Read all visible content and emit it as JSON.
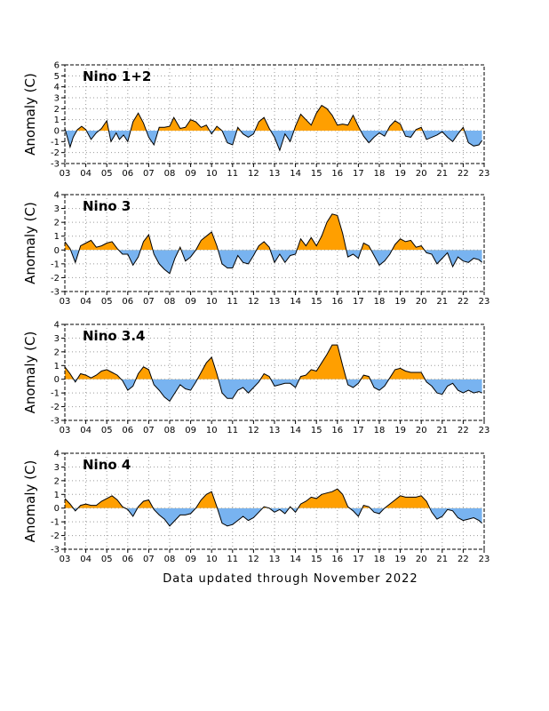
{
  "footer": "Data updated through November 2022",
  "colors": {
    "positive": "#ff9f00",
    "negative": "#78b3f0",
    "line": "#000000",
    "grid": "#9a9a9a"
  },
  "chart_data": [
    {
      "type": "area",
      "title": "Nino 1+2",
      "ylabel": "Anomaly (C)",
      "xlim": [
        2003,
        2023
      ],
      "ylim": [
        -3,
        6
      ],
      "xticks": [
        2003,
        2004,
        2005,
        2006,
        2007,
        2008,
        2009,
        2010,
        2011,
        2012,
        2013,
        2014,
        2015,
        2016,
        2017,
        2018,
        2019,
        2020,
        2021,
        2022,
        2023
      ],
      "xticklabels": [
        "03",
        "04",
        "05",
        "06",
        "07",
        "08",
        "09",
        "10",
        "11",
        "12",
        "13",
        "14",
        "15",
        "16",
        "17",
        "18",
        "19",
        "20",
        "21",
        "22",
        "23"
      ],
      "yticks": [
        -3,
        -2,
        -1,
        0,
        1,
        2,
        3,
        4,
        5,
        6
      ],
      "grid": true,
      "x": [
        2003.0,
        2003.25,
        2003.4,
        2003.6,
        2003.8,
        2004.0,
        2004.25,
        2004.5,
        2004.75,
        2005.0,
        2005.2,
        2005.45,
        2005.6,
        2005.8,
        2006.0,
        2006.25,
        2006.5,
        2006.75,
        2007.0,
        2007.25,
        2007.5,
        2007.75,
        2008.0,
        2008.2,
        2008.5,
        2008.75,
        2009.0,
        2009.25,
        2009.5,
        2009.75,
        2010.0,
        2010.25,
        2010.5,
        2010.75,
        2011.0,
        2011.25,
        2011.5,
        2011.75,
        2012.0,
        2012.25,
        2012.5,
        2012.75,
        2013.0,
        2013.25,
        2013.5,
        2013.75,
        2014.0,
        2014.25,
        2014.5,
        2014.75,
        2015.0,
        2015.25,
        2015.5,
        2015.75,
        2016.0,
        2016.25,
        2016.5,
        2016.75,
        2017.0,
        2017.25,
        2017.5,
        2017.75,
        2018.0,
        2018.25,
        2018.5,
        2018.75,
        2019.0,
        2019.25,
        2019.5,
        2019.75,
        2020.0,
        2020.25,
        2020.5,
        2020.75,
        2021.0,
        2021.25,
        2021.5,
        2021.75,
        2022.0,
        2022.25,
        2022.5,
        2022.75,
        2022.9
      ],
      "values": [
        0.2,
        -1.5,
        -0.6,
        0.1,
        0.4,
        0.1,
        -0.8,
        -0.2,
        0.2,
        0.9,
        -1.0,
        -0.2,
        -0.8,
        -0.4,
        -1.0,
        0.8,
        1.6,
        0.7,
        -0.6,
        -1.3,
        0.3,
        0.3,
        0.4,
        1.2,
        0.2,
        0.3,
        1.0,
        0.8,
        0.3,
        0.5,
        -0.3,
        0.4,
        0.0,
        -1.1,
        -1.3,
        0.3,
        -0.3,
        -0.6,
        -0.3,
        0.8,
        1.2,
        0.2,
        -0.6,
        -1.8,
        -0.3,
        -1.0,
        0.4,
        1.5,
        1.0,
        0.5,
        1.6,
        2.3,
        2.0,
        1.4,
        0.5,
        0.6,
        0.5,
        1.4,
        0.4,
        -0.5,
        -1.1,
        -0.6,
        -0.2,
        -0.5,
        0.4,
        0.9,
        0.6,
        -0.5,
        -0.6,
        0.1,
        0.3,
        -0.8,
        -0.6,
        -0.4,
        -0.1,
        -0.6,
        -1.0,
        -0.3,
        0.3,
        -1.1,
        -1.4,
        -1.3,
        -0.9
      ]
    },
    {
      "type": "area",
      "title": "Nino 3",
      "ylabel": "Anomaly (C)",
      "xlim": [
        2003,
        2023
      ],
      "ylim": [
        -3,
        4
      ],
      "xticks": [
        2003,
        2004,
        2005,
        2006,
        2007,
        2008,
        2009,
        2010,
        2011,
        2012,
        2013,
        2014,
        2015,
        2016,
        2017,
        2018,
        2019,
        2020,
        2021,
        2022,
        2023
      ],
      "xticklabels": [
        "03",
        "04",
        "05",
        "06",
        "07",
        "08",
        "09",
        "10",
        "11",
        "12",
        "13",
        "14",
        "15",
        "16",
        "17",
        "18",
        "19",
        "20",
        "21",
        "22",
        "23"
      ],
      "yticks": [
        -3,
        -2,
        -1,
        0,
        1,
        2,
        3,
        4
      ],
      "grid": true,
      "x": [
        2003.0,
        2003.25,
        2003.5,
        2003.75,
        2004.0,
        2004.25,
        2004.5,
        2004.75,
        2005.0,
        2005.25,
        2005.5,
        2005.75,
        2006.0,
        2006.25,
        2006.5,
        2006.75,
        2007.0,
        2007.25,
        2007.5,
        2007.75,
        2008.0,
        2008.25,
        2008.5,
        2008.75,
        2009.0,
        2009.25,
        2009.5,
        2009.75,
        2010.0,
        2010.25,
        2010.5,
        2010.75,
        2011.0,
        2011.25,
        2011.5,
        2011.75,
        2012.0,
        2012.25,
        2012.5,
        2012.75,
        2013.0,
        2013.25,
        2013.5,
        2013.75,
        2014.0,
        2014.25,
        2014.5,
        2014.75,
        2015.0,
        2015.25,
        2015.5,
        2015.75,
        2016.0,
        2016.25,
        2016.5,
        2016.75,
        2017.0,
        2017.25,
        2017.5,
        2017.75,
        2018.0,
        2018.25,
        2018.5,
        2018.75,
        2019.0,
        2019.25,
        2019.5,
        2019.75,
        2020.0,
        2020.25,
        2020.5,
        2020.75,
        2021.0,
        2021.25,
        2021.5,
        2021.75,
        2022.0,
        2022.25,
        2022.5,
        2022.75,
        2022.9
      ],
      "values": [
        0.6,
        0.1,
        -0.9,
        0.3,
        0.5,
        0.7,
        0.2,
        0.3,
        0.5,
        0.6,
        0.1,
        -0.3,
        -0.3,
        -1.1,
        -0.5,
        0.6,
        1.1,
        -0.3,
        -1.0,
        -1.4,
        -1.7,
        -0.6,
        0.2,
        -0.8,
        -0.5,
        0.0,
        0.7,
        1.0,
        1.3,
        0.3,
        -1.0,
        -1.3,
        -1.3,
        -0.4,
        -0.9,
        -1.0,
        -0.4,
        0.3,
        0.6,
        0.2,
        -0.9,
        -0.3,
        -0.9,
        -0.4,
        -0.3,
        0.8,
        0.3,
        0.9,
        0.3,
        1.0,
        2.0,
        2.6,
        2.5,
        1.2,
        -0.5,
        -0.3,
        -0.6,
        0.5,
        0.3,
        -0.4,
        -1.1,
        -0.8,
        -0.3,
        0.4,
        0.8,
        0.6,
        0.7,
        0.2,
        0.3,
        -0.2,
        -0.3,
        -1.0,
        -0.6,
        -0.2,
        -1.2,
        -0.5,
        -0.8,
        -0.9,
        -0.6,
        -0.7,
        -0.9
      ]
    },
    {
      "type": "area",
      "title": "Nino 3.4",
      "ylabel": "Anomaly (C)",
      "xlim": [
        2003,
        2023
      ],
      "ylim": [
        -3,
        4
      ],
      "xticks": [
        2003,
        2004,
        2005,
        2006,
        2007,
        2008,
        2009,
        2010,
        2011,
        2012,
        2013,
        2014,
        2015,
        2016,
        2017,
        2018,
        2019,
        2020,
        2021,
        2022,
        2023
      ],
      "xticklabels": [
        "03",
        "04",
        "05",
        "06",
        "07",
        "08",
        "09",
        "10",
        "11",
        "12",
        "13",
        "14",
        "15",
        "16",
        "17",
        "18",
        "19",
        "20",
        "21",
        "22",
        "23"
      ],
      "yticks": [
        -3,
        -2,
        -1,
        0,
        1,
        2,
        3,
        4
      ],
      "grid": true,
      "x": [
        2003.0,
        2003.25,
        2003.5,
        2003.75,
        2004.0,
        2004.25,
        2004.5,
        2004.75,
        2005.0,
        2005.25,
        2005.5,
        2005.75,
        2006.0,
        2006.25,
        2006.5,
        2006.75,
        2007.0,
        2007.25,
        2007.5,
        2007.75,
        2008.0,
        2008.25,
        2008.5,
        2008.75,
        2009.0,
        2009.25,
        2009.5,
        2009.75,
        2010.0,
        2010.25,
        2010.5,
        2010.75,
        2011.0,
        2011.25,
        2011.5,
        2011.75,
        2012.0,
        2012.25,
        2012.5,
        2012.75,
        2013.0,
        2013.25,
        2013.5,
        2013.75,
        2014.0,
        2014.25,
        2014.5,
        2014.75,
        2015.0,
        2015.25,
        2015.5,
        2015.75,
        2016.0,
        2016.25,
        2016.5,
        2016.75,
        2017.0,
        2017.25,
        2017.5,
        2017.75,
        2018.0,
        2018.25,
        2018.5,
        2018.75,
        2019.0,
        2019.25,
        2019.5,
        2019.75,
        2020.0,
        2020.25,
        2020.5,
        2020.75,
        2021.0,
        2021.25,
        2021.5,
        2021.75,
        2022.0,
        2022.25,
        2022.5,
        2022.75,
        2022.9
      ],
      "values": [
        0.9,
        0.4,
        -0.2,
        0.4,
        0.3,
        0.1,
        0.3,
        0.6,
        0.7,
        0.5,
        0.3,
        -0.1,
        -0.8,
        -0.5,
        0.4,
        0.9,
        0.7,
        -0.4,
        -0.8,
        -1.3,
        -1.6,
        -1.0,
        -0.4,
        -0.7,
        -0.8,
        -0.2,
        0.5,
        1.2,
        1.6,
        0.4,
        -1.0,
        -1.4,
        -1.4,
        -0.8,
        -0.6,
        -1.0,
        -0.6,
        -0.2,
        0.4,
        0.2,
        -0.5,
        -0.4,
        -0.3,
        -0.3,
        -0.6,
        0.2,
        0.3,
        0.7,
        0.6,
        1.2,
        1.8,
        2.5,
        2.5,
        1.0,
        -0.4,
        -0.6,
        -0.3,
        0.3,
        0.2,
        -0.6,
        -0.8,
        -0.5,
        0.1,
        0.7,
        0.8,
        0.6,
        0.5,
        0.5,
        0.5,
        -0.2,
        -0.5,
        -1.0,
        -1.1,
        -0.5,
        -0.3,
        -0.8,
        -1.0,
        -0.8,
        -1.0,
        -0.9,
        -1.0
      ]
    },
    {
      "type": "area",
      "title": "Nino 4",
      "ylabel": "Anomaly (C)",
      "xlim": [
        2003,
        2023
      ],
      "ylim": [
        -3,
        4
      ],
      "xticks": [
        2003,
        2004,
        2005,
        2006,
        2007,
        2008,
        2009,
        2010,
        2011,
        2012,
        2013,
        2014,
        2015,
        2016,
        2017,
        2018,
        2019,
        2020,
        2021,
        2022,
        2023
      ],
      "xticklabels": [
        "03",
        "04",
        "05",
        "06",
        "07",
        "08",
        "09",
        "10",
        "11",
        "12",
        "13",
        "14",
        "15",
        "16",
        "17",
        "18",
        "19",
        "20",
        "21",
        "22",
        "23"
      ],
      "yticks": [
        -3,
        -2,
        -1,
        0,
        1,
        2,
        3,
        4
      ],
      "grid": true,
      "x": [
        2003.0,
        2003.25,
        2003.5,
        2003.75,
        2004.0,
        2004.25,
        2004.5,
        2004.75,
        2005.0,
        2005.25,
        2005.5,
        2005.75,
        2006.0,
        2006.25,
        2006.5,
        2006.75,
        2007.0,
        2007.25,
        2007.5,
        2007.75,
        2008.0,
        2008.25,
        2008.5,
        2008.75,
        2009.0,
        2009.25,
        2009.5,
        2009.75,
        2010.0,
        2010.25,
        2010.5,
        2010.75,
        2011.0,
        2011.25,
        2011.5,
        2011.75,
        2012.0,
        2012.25,
        2012.5,
        2012.75,
        2013.0,
        2013.25,
        2013.5,
        2013.75,
        2014.0,
        2014.25,
        2014.5,
        2014.75,
        2015.0,
        2015.25,
        2015.5,
        2015.75,
        2016.0,
        2016.25,
        2016.5,
        2016.75,
        2017.0,
        2017.25,
        2017.5,
        2017.75,
        2018.0,
        2018.25,
        2018.5,
        2018.75,
        2019.0,
        2019.25,
        2019.5,
        2019.75,
        2020.0,
        2020.25,
        2020.5,
        2020.75,
        2021.0,
        2021.25,
        2021.5,
        2021.75,
        2022.0,
        2022.25,
        2022.5,
        2022.75,
        2022.9
      ],
      "values": [
        0.7,
        0.3,
        -0.2,
        0.2,
        0.3,
        0.2,
        0.2,
        0.5,
        0.7,
        0.9,
        0.6,
        0.1,
        -0.1,
        -0.6,
        0.1,
        0.5,
        0.6,
        -0.1,
        -0.5,
        -0.8,
        -1.3,
        -0.9,
        -0.5,
        -0.5,
        -0.4,
        0.0,
        0.6,
        1.0,
        1.2,
        0.1,
        -1.1,
        -1.3,
        -1.2,
        -0.9,
        -0.6,
        -0.9,
        -0.7,
        -0.3,
        0.1,
        0.0,
        -0.3,
        -0.1,
        -0.4,
        0.1,
        -0.3,
        0.3,
        0.5,
        0.8,
        0.7,
        1.0,
        1.1,
        1.2,
        1.4,
        1.0,
        0.1,
        -0.2,
        -0.6,
        0.2,
        0.1,
        -0.3,
        -0.4,
        0.0,
        0.3,
        0.6,
        0.9,
        0.8,
        0.8,
        0.8,
        0.9,
        0.5,
        -0.3,
        -0.8,
        -0.6,
        -0.1,
        -0.2,
        -0.7,
        -0.9,
        -0.8,
        -0.7,
        -0.9,
        -1.1
      ]
    }
  ]
}
